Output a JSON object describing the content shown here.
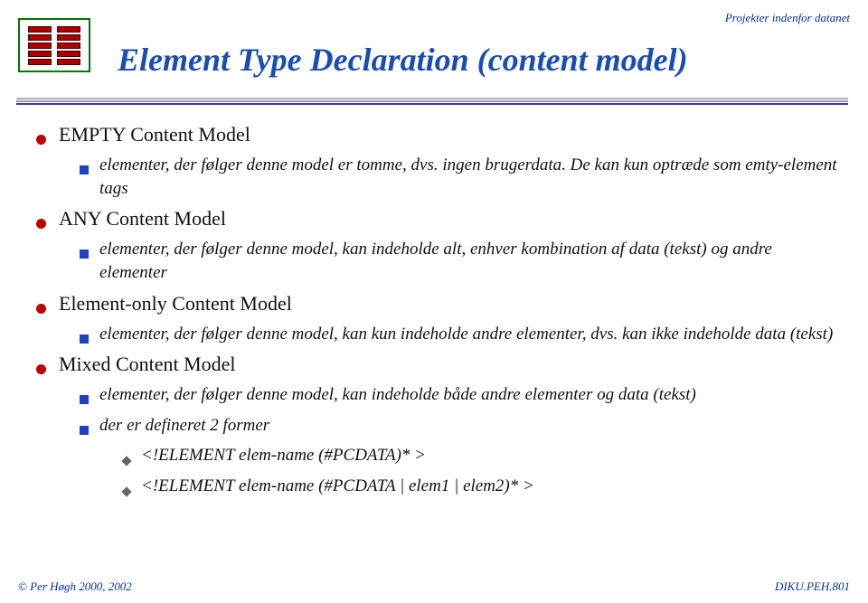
{
  "header": {
    "topright": "Projekter indenfor datanet",
    "title": "Element Type Declaration (content model)"
  },
  "content": {
    "sections": [
      {
        "label": "EMPTY Content Model",
        "subs": [
          {
            "text": "elementer, der følger denne model er tomme, dvs. ingen brugerdata. De kan kun optræde som emty-element tags"
          }
        ]
      },
      {
        "label": "ANY Content Model",
        "subs": [
          {
            "text": "elementer, der følger denne model, kan indeholde alt, enhver kombination af data (tekst) og andre elementer"
          }
        ]
      },
      {
        "label": "Element-only Content Model",
        "subs": [
          {
            "text": "elementer, der følger denne model, kan kun indeholde andre elementer, dvs. kan ikke indeholde data (tekst)"
          }
        ]
      },
      {
        "label": "Mixed Content Model",
        "subs": [
          {
            "text": "elementer, der følger denne model, kan indeholde både andre elementer og data (tekst)"
          },
          {
            "text": "der er defineret 2 former",
            "subsubs": [
              {
                "text": "<!ELEMENT elem-name (#PCDATA)* >"
              },
              {
                "text": "<!ELEMENT elem-name (#PCDATA | elem1 | elem2)* >"
              }
            ]
          }
        ]
      }
    ]
  },
  "footer": {
    "left": "© Per Høgh  2000, 2002",
    "right": "DIKU.PEH.801"
  },
  "style": {
    "title_color": "#1a4db3",
    "bullet_red": "#c00000",
    "bullet_blue": "#2040c0",
    "header_color": "#003399"
  }
}
